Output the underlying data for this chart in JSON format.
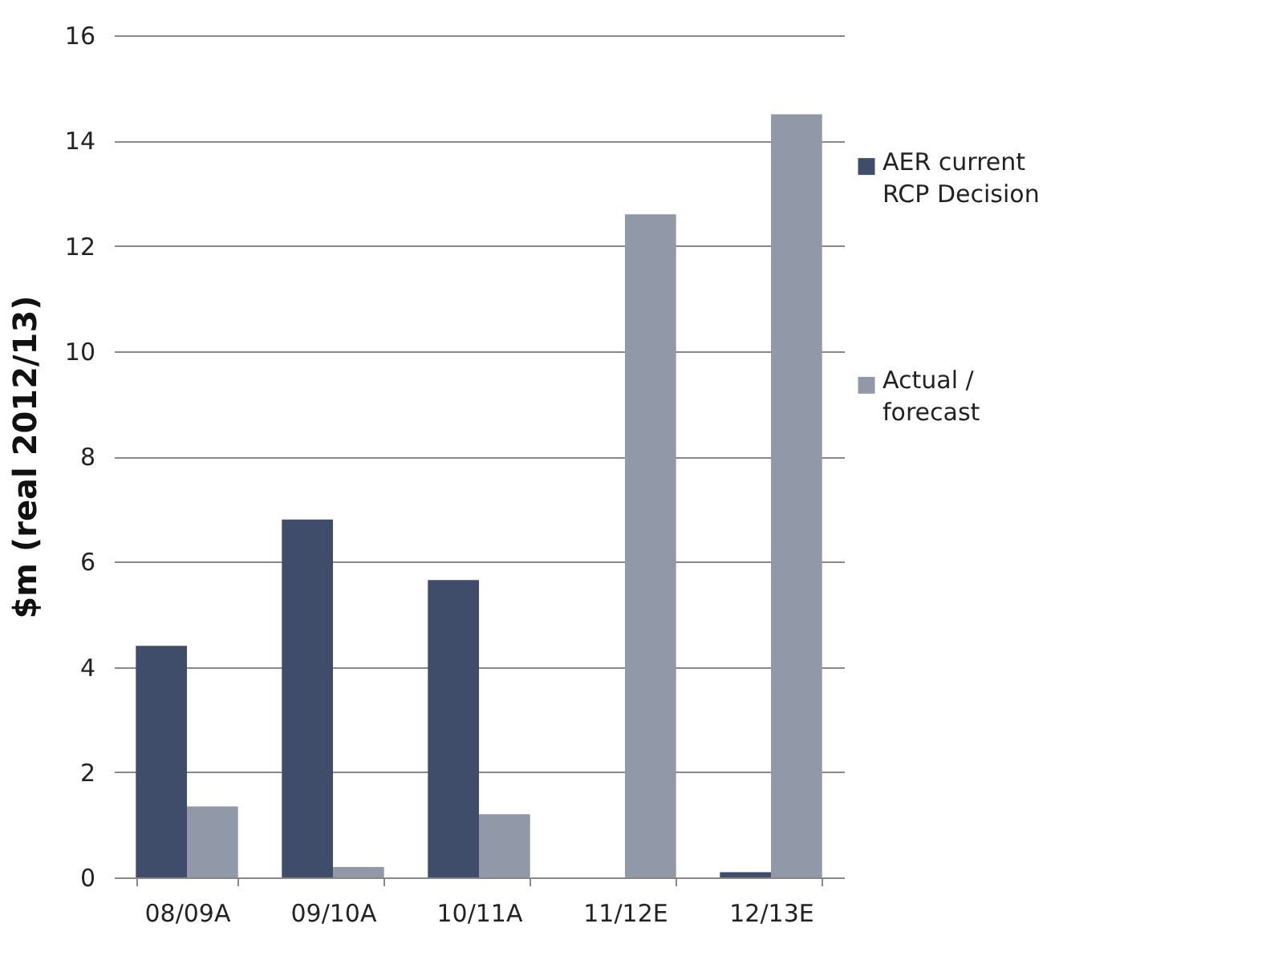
{
  "chart_data": {
    "type": "bar",
    "ylabel": "$m (real 2012/13)",
    "categories": [
      "08/09A",
      "09/10A",
      "10/11A",
      "11/12E",
      "12/13E"
    ],
    "series": [
      {
        "name": "AER current RCP Decision",
        "color": "#3f4d6b",
        "values": [
          4.4,
          6.8,
          5.65,
          null,
          0.1
        ]
      },
      {
        "name": "Actual / forecast",
        "color": "#9198a8",
        "values": [
          1.35,
          0.2,
          1.2,
          12.6,
          14.5
        ]
      }
    ],
    "ylim": [
      0,
      16
    ],
    "yticks": [
      0,
      2,
      4,
      6,
      8,
      10,
      12,
      14,
      16
    ],
    "grid": "y",
    "legend": "right"
  }
}
